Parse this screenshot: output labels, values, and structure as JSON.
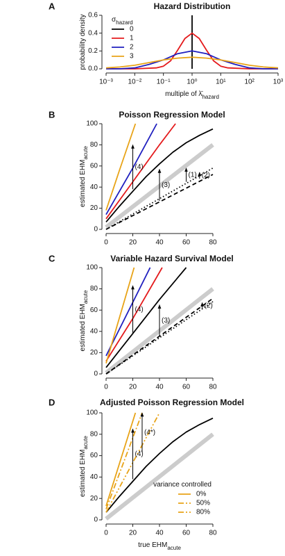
{
  "chart_data": [
    {
      "type": "line",
      "panel": "A",
      "title": "Hazard Distribution",
      "xlog": true,
      "ylabel": "probability density",
      "xlabel": "multiple of λ̄",
      "xlabel_sub": "hazard",
      "xlim": [
        0.001,
        1000
      ],
      "ylim": [
        0,
        0.6
      ],
      "xticks": [
        {
          "value": 0.001,
          "label": "10⁻³"
        },
        {
          "value": 0.01,
          "label": "10⁻²"
        },
        {
          "value": 0.1,
          "label": "10⁻¹"
        },
        {
          "value": 1,
          "label": "10⁰"
        },
        {
          "value": 10,
          "label": "10¹"
        },
        {
          "value": 100,
          "label": "10²"
        },
        {
          "value": 1000,
          "label": "10³"
        }
      ],
      "yticks": [
        {
          "value": 0,
          "label": "0.0"
        },
        0.2,
        0.4,
        0.6
      ],
      "legend": "top-left",
      "legend_title": "σ",
      "legend_title_sub": "hazard",
      "series": [
        {
          "name": "0",
          "color": "#000000",
          "x": [
            1,
            1
          ],
          "values": [
            0,
            0.6
          ]
        },
        {
          "name": "1",
          "color": "#e41a1c",
          "x": [
            0.001,
            0.01,
            0.056,
            0.1,
            0.178,
            0.316,
            0.562,
            1,
            1.778,
            3.162,
            5.623,
            10,
            17.78,
            100,
            1000
          ],
          "values": [
            0,
            0,
            0.01,
            0.03,
            0.09,
            0.21,
            0.34,
            0.4,
            0.34,
            0.21,
            0.09,
            0.03,
            0.01,
            0,
            0
          ]
        },
        {
          "name": "2",
          "color": "#1f1fbf",
          "x": [
            0.001,
            0.003,
            0.01,
            0.032,
            0.1,
            0.316,
            1,
            3.162,
            10,
            31.62,
            100,
            316.2,
            1000
          ],
          "values": [
            0,
            0,
            0.01,
            0.05,
            0.1,
            0.17,
            0.2,
            0.17,
            0.1,
            0.05,
            0.01,
            0,
            0
          ]
        },
        {
          "name": "3",
          "color": "#e8a317",
          "x": [
            0.001,
            0.003,
            0.01,
            0.032,
            0.1,
            0.316,
            1,
            3.162,
            10,
            31.62,
            100,
            316.2,
            1000
          ],
          "values": [
            0.01,
            0.02,
            0.04,
            0.07,
            0.1,
            0.12,
            0.13,
            0.12,
            0.1,
            0.07,
            0.04,
            0.02,
            0.01
          ]
        }
      ]
    },
    {
      "type": "line",
      "panel": "B",
      "title": "Poisson Regression Model",
      "ylabel": "estimated EHM",
      "ylabel_sub": "acute",
      "xlim": [
        0,
        80
      ],
      "ylim": [
        0,
        100
      ],
      "xticks": [
        0,
        20,
        40,
        60,
        80
      ],
      "yticks": [
        0,
        20,
        40,
        60,
        80,
        100
      ],
      "series": [
        {
          "color": "#cccccc",
          "width": 6,
          "x": [
            0,
            80
          ],
          "values": [
            2,
            80
          ]
        },
        {
          "color": "#000000",
          "dash": "dashed",
          "x": [
            0,
            80
          ],
          "values": [
            0,
            52
          ]
        },
        {
          "color": "#000000",
          "dash": "dotted",
          "x": [
            0,
            80
          ],
          "values": [
            0,
            58
          ]
        },
        {
          "color": "#000000",
          "x": [
            0,
            10,
            20,
            30,
            40,
            50,
            60,
            70,
            80
          ],
          "values": [
            7,
            22,
            36,
            50,
            62,
            73,
            82,
            89,
            95
          ]
        },
        {
          "color": "#e41a1c",
          "x": [
            0,
            20,
            40,
            52
          ],
          "values": [
            10,
            45,
            80,
            100
          ]
        },
        {
          "color": "#1f1fbf",
          "x": [
            0,
            20,
            38
          ],
          "values": [
            14,
            58,
            100
          ]
        },
        {
          "color": "#e8a317",
          "x": [
            0,
            10,
            22
          ],
          "values": [
            18,
            56,
            100
          ]
        }
      ],
      "annotations": [
        {
          "text": "(4)",
          "x": 20,
          "y": [
            38,
            80
          ]
        },
        {
          "text": "(3)",
          "x": 40,
          "y": [
            27,
            57
          ]
        },
        {
          "text": "(1)",
          "x": 60,
          "y": [
            45,
            58
          ]
        },
        {
          "text": "(2)",
          "x": 70,
          "y": [
            48,
            54
          ]
        }
      ]
    },
    {
      "type": "line",
      "panel": "C",
      "title": "Variable Hazard Survival Model",
      "ylabel": "estimated EHM",
      "ylabel_sub": "acute",
      "xlim": [
        0,
        80
      ],
      "ylim": [
        0,
        100
      ],
      "xticks": [
        0,
        20,
        40,
        60,
        80
      ],
      "yticks": [
        0,
        20,
        40,
        60,
        80,
        100
      ],
      "series": [
        {
          "color": "#cccccc",
          "width": 6,
          "x": [
            0,
            80
          ],
          "values": [
            1,
            80
          ]
        },
        {
          "color": "#000000",
          "dash": "dashed",
          "x": [
            0,
            80
          ],
          "values": [
            0,
            71
          ]
        },
        {
          "color": "#000000",
          "dash": "dotted",
          "x": [
            0,
            80
          ],
          "values": [
            0,
            68
          ]
        },
        {
          "color": "#000000",
          "x": [
            0,
            20,
            40,
            60
          ],
          "values": [
            6,
            38,
            70,
            100
          ]
        },
        {
          "color": "#e41a1c",
          "x": [
            0,
            20,
            42
          ],
          "values": [
            12,
            52,
            100
          ]
        },
        {
          "color": "#1f1fbf",
          "x": [
            0,
            33
          ],
          "values": [
            17,
            100
          ]
        },
        {
          "color": "#e8a317",
          "x": [
            0,
            21
          ],
          "values": [
            10,
            100
          ]
        }
      ],
      "annotations": [
        {
          "text": "(4)",
          "x": 20,
          "y": [
            38,
            83
          ]
        },
        {
          "text": "(3)",
          "x": 40,
          "y": [
            35,
            65
          ]
        },
        {
          "text": "(2)",
          "x": 72,
          "y": [
            61,
            67
          ]
        }
      ]
    },
    {
      "type": "line",
      "panel": "D",
      "title": "Adjusted Poisson Regression Model",
      "ylabel": "estimated EHM",
      "ylabel_sub": "acute",
      "xlabel": "true EHM",
      "xlabel_sub": "acute",
      "xlim": [
        0,
        80
      ],
      "ylim": [
        0,
        100
      ],
      "xticks": [
        0,
        20,
        40,
        60,
        80
      ],
      "yticks": [
        0,
        20,
        40,
        60,
        80,
        100
      ],
      "legend": "bottom-right",
      "legend_title": "variance controlled",
      "series": [
        {
          "color": "#cccccc",
          "width": 6,
          "x": [
            0,
            80
          ],
          "values": [
            1,
            80
          ]
        },
        {
          "color": "#000000",
          "x": [
            0,
            10,
            20,
            30,
            40,
            50,
            60,
            70,
            80
          ],
          "values": [
            7,
            22,
            36,
            50,
            62,
            73,
            82,
            89,
            95
          ]
        },
        {
          "name": "0%",
          "color": "#e8a317",
          "x": [
            0,
            22
          ],
          "values": [
            13,
            100
          ]
        },
        {
          "name": "50%",
          "color": "#e8a317",
          "dash": "dashdot",
          "x": [
            0,
            27
          ],
          "values": [
            10,
            100
          ]
        },
        {
          "name": "80%",
          "color": "#e8a317",
          "dash": "dashdotdot",
          "x": [
            0,
            40
          ],
          "values": [
            7,
            100
          ]
        }
      ],
      "annotations": [
        {
          "text": "(4)",
          "x": 20,
          "y": [
            38,
            85
          ]
        },
        {
          "text": "(4*)",
          "x": 27,
          "y": [
            63,
            100
          ]
        }
      ]
    }
  ]
}
